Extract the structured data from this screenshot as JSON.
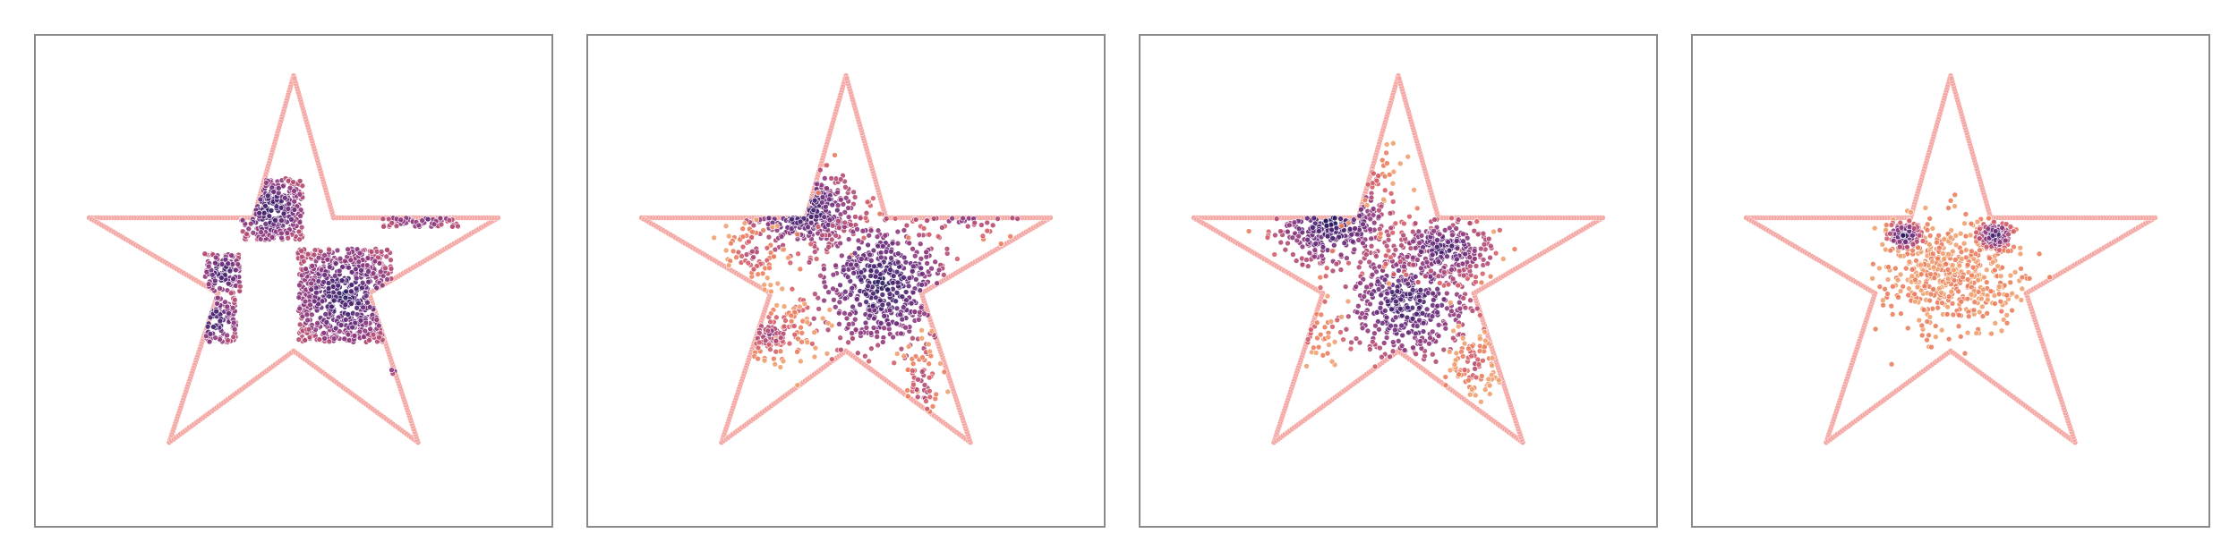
{
  "figure": {
    "panels": [
      {
        "id": "panel-1",
        "pattern": "checkerboard"
      },
      {
        "id": "panel-2",
        "pattern": "diffusing-checkerboard"
      },
      {
        "id": "panel-3",
        "pattern": "blobs"
      },
      {
        "id": "panel-4",
        "pattern": "two-clusters"
      }
    ],
    "colors": {
      "star_outline": "#f4a6a2",
      "palette": [
        "#2a1a5e",
        "#4a2470",
        "#6c2f7b",
        "#8e3a7d",
        "#b24b74",
        "#d45f6a",
        "#ea7e5e",
        "#f0a070"
      ]
    }
  }
}
